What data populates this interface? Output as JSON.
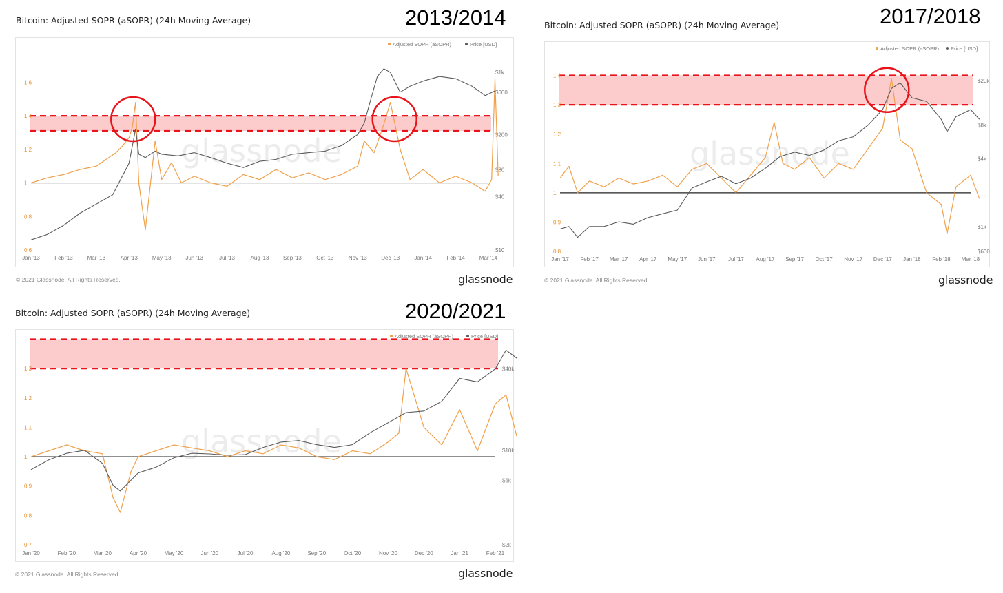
{
  "colors": {
    "asopr": "#f0a04b",
    "price": "#5a5a5a",
    "band_fill": "#fcc3c3",
    "band_line": "#e8141a",
    "circle": "#e8141a",
    "baseline": "#222222"
  },
  "chart_data": [
    {
      "type": "line",
      "title": "Bitcoin: Adjusted SOPR (aSOPR) (24h Moving Average)",
      "period_label": "2013/2014",
      "watermark": "glassnode",
      "legend": [
        "Adjusted SOPR (aSOPR)",
        "Price [USD]"
      ],
      "x_tick_labels": [
        "Jan '13",
        "Feb '13",
        "Mar '13",
        "Apr '13",
        "May '13",
        "Jun '13",
        "Jul '13",
        "Aug '13",
        "Sep '13",
        "Oct '13",
        "Nov '13",
        "Dec '13",
        "Jan '14",
        "Feb '14",
        "Mar '14"
      ],
      "y_left_ticks": [
        "0.6",
        "0.8",
        "1",
        "1.2",
        "1.4",
        "1.6"
      ],
      "y_right_ticks": [
        "$10",
        "$40",
        "$80",
        "$200",
        "$600",
        "$1k"
      ],
      "ylim_left": [
        0.6,
        1.7
      ],
      "ylim_right_log": [
        10,
        1200
      ],
      "baseline": 1.0,
      "band": [
        1.31,
        1.4
      ],
      "highlight_circles": [
        {
          "x": "Apr '13",
          "y": 1.38
        },
        {
          "x": "Dec '13",
          "y": 1.38
        }
      ],
      "series": [
        {
          "name": "Adjusted SOPR (aSOPR)",
          "axis": "left",
          "x": [
            0,
            0.5,
            1,
            1.5,
            2,
            2.3,
            2.6,
            2.8,
            3,
            3.1,
            3.2,
            3.3,
            3.5,
            3.8,
            4,
            4.3,
            4.6,
            5,
            5.5,
            6,
            6.5,
            7,
            7.5,
            8,
            8.5,
            9,
            9.5,
            10,
            10.2,
            10.5,
            10.8,
            11,
            11.3,
            11.6,
            12,
            12.5,
            13,
            13.5,
            13.9,
            14.1,
            14.2,
            14.3
          ],
          "values": [
            1.0,
            1.03,
            1.05,
            1.08,
            1.1,
            1.14,
            1.18,
            1.22,
            1.27,
            1.33,
            1.48,
            1.0,
            0.72,
            1.25,
            1.02,
            1.12,
            1.0,
            1.04,
            1.0,
            0.98,
            1.05,
            1.02,
            1.08,
            1.03,
            1.06,
            1.02,
            1.05,
            1.1,
            1.25,
            1.18,
            1.35,
            1.48,
            1.2,
            1.02,
            1.08,
            1.0,
            1.04,
            1.0,
            0.95,
            1.02,
            1.62,
            1.04
          ]
        },
        {
          "name": "Price [USD]",
          "axis": "right",
          "x": [
            0,
            0.5,
            1,
            1.5,
            2,
            2.5,
            3,
            3.2,
            3.3,
            3.5,
            3.8,
            4,
            4.5,
            5,
            5.5,
            6,
            6.5,
            7,
            7.5,
            8,
            8.5,
            9,
            9.5,
            10,
            10.2,
            10.4,
            10.6,
            10.8,
            11,
            11.3,
            11.6,
            12,
            12.5,
            13,
            13.5,
            13.9,
            14.2
          ],
          "values": [
            13,
            15,
            19,
            26,
            33,
            42,
            95,
            230,
            120,
            110,
            130,
            120,
            115,
            125,
            110,
            95,
            85,
            100,
            105,
            120,
            125,
            130,
            150,
            200,
            270,
            500,
            900,
            1100,
            1000,
            600,
            700,
            800,
            900,
            850,
            700,
            550,
            620
          ]
        }
      ]
    },
    {
      "type": "line",
      "title": "Bitcoin: Adjusted SOPR (aSOPR) (24h Moving Average)",
      "period_label": "2017/2018",
      "watermark": "glassnode",
      "legend": [
        "Adjusted SOPR (aSOPR)",
        "Price [USD]"
      ],
      "x_tick_labels": [
        "Jan '17",
        "Feb '17",
        "Mar '17",
        "Apr '17",
        "May '17",
        "Jun '17",
        "Jul '17",
        "Aug '17",
        "Sep '17",
        "Oct '17",
        "Nov '17",
        "Dec '17",
        "Jan '18",
        "Feb '18",
        "Mar '18"
      ],
      "y_left_ticks": [
        "0.8",
        "0.9",
        "1",
        "1.1",
        "1.2",
        "1.3",
        "1.4"
      ],
      "y_right_ticks": [
        "$600",
        "$1k",
        "$4k",
        "$8k",
        "$20k"
      ],
      "ylim_left": [
        0.8,
        1.42
      ],
      "ylim_right_log": [
        600,
        25000
      ],
      "baseline": 1.0,
      "band": [
        1.3,
        1.4
      ],
      "highlight_circles": [
        {
          "x": "Dec '17",
          "y": 1.35
        }
      ],
      "series": [
        {
          "name": "Adjusted SOPR (aSOPR)",
          "axis": "left",
          "x": [
            0,
            0.3,
            0.6,
            1,
            1.5,
            2,
            2.5,
            3,
            3.5,
            4,
            4.5,
            5,
            5.5,
            6,
            6.5,
            7,
            7.3,
            7.6,
            8,
            8.5,
            9,
            9.5,
            10,
            10.5,
            11,
            11.3,
            11.6,
            12,
            12.5,
            13,
            13.2,
            13.5,
            14,
            14.3
          ],
          "values": [
            1.05,
            1.09,
            1.0,
            1.04,
            1.02,
            1.05,
            1.03,
            1.04,
            1.06,
            1.02,
            1.08,
            1.1,
            1.05,
            1.0,
            1.06,
            1.12,
            1.24,
            1.1,
            1.08,
            1.12,
            1.05,
            1.1,
            1.08,
            1.15,
            1.22,
            1.39,
            1.18,
            1.15,
            1.0,
            0.96,
            0.86,
            1.02,
            1.06,
            0.98
          ]
        },
        {
          "name": "Price [USD]",
          "axis": "right",
          "x": [
            0,
            0.3,
            0.6,
            1,
            1.5,
            2,
            2.5,
            3,
            3.5,
            4,
            4.5,
            5,
            5.5,
            6,
            6.5,
            7,
            7.5,
            8,
            8.5,
            9,
            9.5,
            10,
            10.5,
            11,
            11.3,
            11.6,
            12,
            12.5,
            13,
            13.2,
            13.5,
            14,
            14.3
          ],
          "values": [
            950,
            1000,
            800,
            1000,
            1000,
            1100,
            1050,
            1200,
            1300,
            1400,
            2200,
            2500,
            2800,
            2400,
            2700,
            3300,
            4200,
            4600,
            4300,
            4800,
            5800,
            6300,
            8000,
            11000,
            17000,
            19000,
            14000,
            13000,
            9000,
            7000,
            9500,
            11000,
            9000
          ]
        }
      ]
    },
    {
      "type": "line",
      "title": "Bitcoin: Adjusted SOPR (aSOPR) (24h Moving Average)",
      "period_label": "2020/2021",
      "watermark": "glassnode",
      "legend": [
        "Adjusted SOPR (aSOPR)",
        "Price [USD]"
      ],
      "x_tick_labels": [
        "Jan '20",
        "Feb '20",
        "Mar '20",
        "Apr '20",
        "May '20",
        "Jun '20",
        "Jul '20",
        "Aug '20",
        "Sep '20",
        "Oct '20",
        "Nov '20",
        "Dec '20",
        "Jan '21",
        "Feb '21"
      ],
      "y_left_ticks": [
        "0.7",
        "0.8",
        "0.9",
        "1",
        "1.1",
        "1.2",
        "1.3"
      ],
      "y_right_ticks": [
        "$2k",
        "$6k",
        "$10k",
        "$40k"
      ],
      "ylim_left": [
        0.7,
        1.38
      ],
      "ylim_right_log": [
        2000,
        60000
      ],
      "baseline": 1.0,
      "band": [
        1.3,
        1.4
      ],
      "highlight_circles": [],
      "series": [
        {
          "name": "Adjusted SOPR (aSOPR)",
          "axis": "left",
          "x": [
            0,
            0.5,
            1,
            1.5,
            2,
            2.3,
            2.5,
            2.8,
            3,
            3.5,
            4,
            4.5,
            5,
            5.5,
            6,
            6.5,
            7,
            7.5,
            8,
            8.5,
            9,
            9.5,
            10,
            10.3,
            10.5,
            11,
            11.5,
            12,
            12.5,
            13,
            13.3,
            13.6
          ],
          "values": [
            1.0,
            1.02,
            1.04,
            1.02,
            1.01,
            0.86,
            0.81,
            0.95,
            1.0,
            1.02,
            1.04,
            1.03,
            1.02,
            1.0,
            1.02,
            1.01,
            1.04,
            1.03,
            1.0,
            0.99,
            1.02,
            1.01,
            1.05,
            1.08,
            1.3,
            1.1,
            1.04,
            1.16,
            1.02,
            1.18,
            1.21,
            1.07
          ]
        },
        {
          "name": "Price [USD]",
          "axis": "right",
          "x": [
            0,
            0.5,
            1,
            1.5,
            2,
            2.3,
            2.5,
            3,
            3.5,
            4,
            4.5,
            5,
            5.5,
            6,
            6.5,
            7,
            7.5,
            8,
            8.5,
            9,
            9.5,
            10,
            10.5,
            11,
            11.5,
            12,
            12.5,
            13,
            13.3,
            13.6
          ],
          "values": [
            7200,
            8500,
            9500,
            10000,
            8000,
            5500,
            5000,
            6800,
            7500,
            8800,
            9500,
            9400,
            9200,
            9300,
            10500,
            11500,
            11800,
            11000,
            10500,
            11000,
            13500,
            16000,
            19000,
            19500,
            23000,
            34000,
            32000,
            40000,
            55000,
            48000
          ]
        }
      ]
    }
  ],
  "copyright": "© 2021 Glassnode. All Rights Reserved.",
  "brand": "glassnode"
}
